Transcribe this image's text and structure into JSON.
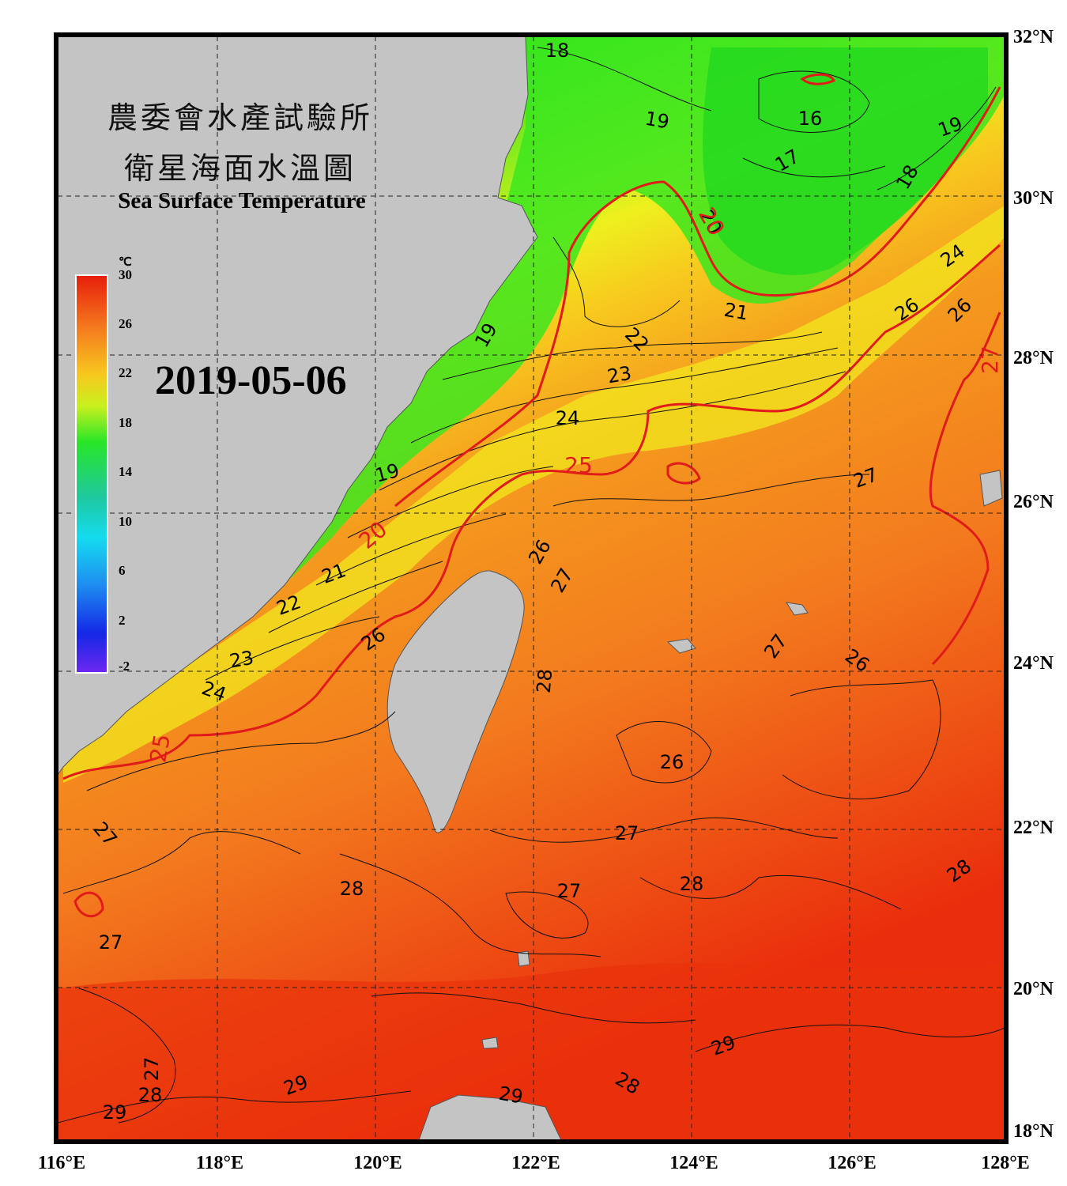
{
  "title": {
    "line1": "農委會水產試驗所",
    "line2": "衛星海面水溫圖",
    "english": "Sea Surface Temperature"
  },
  "date": "2019-05-06",
  "colorbar": {
    "unit": "℃",
    "ticks": [
      "30",
      "26",
      "22",
      "18",
      "14",
      "10",
      "6",
      "2",
      "-2"
    ],
    "colors": [
      "#e61e0a",
      "#f5781e",
      "#f7c81e",
      "#c8f01e",
      "#28e628",
      "#1ec8a0",
      "#14dcf0",
      "#1e8cf0",
      "#1428e6",
      "#6e28f0"
    ]
  },
  "axes": {
    "lon_labels": [
      "116°E",
      "118°E",
      "120°E",
      "122°E",
      "124°E",
      "126°E",
      "128°E"
    ],
    "lat_labels": [
      "32°N",
      "30°N",
      "28°N",
      "26°N",
      "24°N",
      "22°N",
      "20°N",
      "18°N"
    ]
  },
  "contour_labels": {
    "black": [
      "18",
      "16",
      "19",
      "17",
      "19",
      "18",
      "20",
      "24",
      "21",
      "26",
      "26",
      "22",
      "23",
      "24",
      "19",
      "19",
      "27",
      "21",
      "22",
      "26",
      "27",
      "23",
      "24",
      "26",
      "27",
      "26",
      "28",
      "26",
      "27",
      "28",
      "28",
      "27",
      "28",
      "27",
      "27",
      "29",
      "28",
      "29",
      "29",
      "28",
      "27",
      "29"
    ],
    "red": [
      "20",
      "25",
      "20",
      "25",
      "27"
    ]
  },
  "colors": {
    "land": "#c4c4c4",
    "frame": "#000000",
    "contour_highlight": "#e11a1a"
  }
}
